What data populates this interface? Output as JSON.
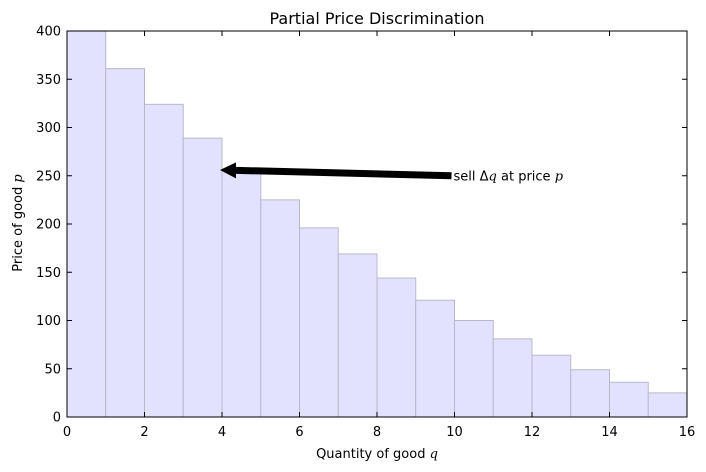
{
  "chart_data": {
    "type": "bar",
    "title": "Partial Price Discrimination",
    "xlabel": "Quantity of good q",
    "ylabel": "Price of good p",
    "xlim": [
      0,
      16
    ],
    "ylim": [
      0,
      400
    ],
    "x_ticks": [
      0,
      2,
      4,
      6,
      8,
      10,
      12,
      14,
      16
    ],
    "y_ticks": [
      0,
      50,
      100,
      150,
      200,
      250,
      300,
      350,
      400
    ],
    "bar_width": 1,
    "x": [
      0,
      1,
      2,
      3,
      4,
      5,
      6,
      7,
      8,
      9,
      10,
      11,
      12,
      13,
      14,
      15
    ],
    "values": [
      400,
      361,
      324,
      289,
      256,
      225,
      196,
      169,
      144,
      121,
      100,
      81,
      64,
      49,
      36,
      25
    ],
    "bar_color": "#e2e2fe",
    "bar_edge_color": "#b8b8cc",
    "annotation": {
      "text": "sell Δq at price p",
      "arrow_point": [
        4,
        256
      ],
      "text_point": [
        10,
        250
      ]
    }
  }
}
